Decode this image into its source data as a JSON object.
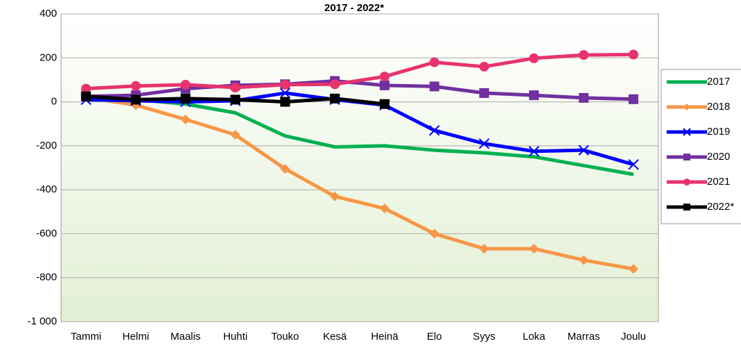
{
  "chart_data": {
    "type": "line",
    "title": "2017 - 2022*",
    "categories": [
      "Tammi",
      "Helmi",
      "Maalis",
      "Huhti",
      "Touko",
      "Kesä",
      "Heinä",
      "Elo",
      "Syys",
      "Loka",
      "Marras",
      "Joulu"
    ],
    "series": [
      {
        "name": "2017",
        "color": "#00b050",
        "marker": "none",
        "values": [
          20,
          10,
          -10,
          -50,
          -155,
          -205,
          -200,
          -220,
          -232,
          -250,
          -290,
          -330
        ]
      },
      {
        "name": "2018",
        "color": "#f79646",
        "marker": "diamond",
        "values": [
          20,
          -15,
          -80,
          -150,
          -305,
          -430,
          -485,
          -600,
          -668,
          -668,
          -720,
          -760
        ]
      },
      {
        "name": "2019",
        "color": "#0000ff",
        "marker": "x",
        "values": [
          10,
          5,
          0,
          5,
          40,
          10,
          -15,
          -130,
          -190,
          -225,
          -220,
          -285
        ]
      },
      {
        "name": "2020",
        "color": "#7030a0",
        "marker": "square",
        "values": [
          25,
          30,
          60,
          75,
          80,
          95,
          75,
          70,
          40,
          30,
          18,
          12
        ]
      },
      {
        "name": "2021",
        "color": "#e8326e",
        "marker": "circle",
        "values": [
          60,
          72,
          78,
          65,
          78,
          80,
          115,
          180,
          160,
          198,
          213,
          215
        ]
      },
      {
        "name": "2022*",
        "color": "#000000",
        "marker": "square",
        "values": [
          25,
          10,
          15,
          10,
          0,
          15,
          -10,
          null,
          null,
          null,
          null,
          null
        ]
      }
    ],
    "ylim": [
      -1000,
      400
    ],
    "yticks": [
      {
        "value": -1000,
        "label": "-1 000"
      },
      -800,
      -600,
      -400,
      -200,
      0,
      200,
      400
    ],
    "grid": true,
    "legend": "right"
  }
}
